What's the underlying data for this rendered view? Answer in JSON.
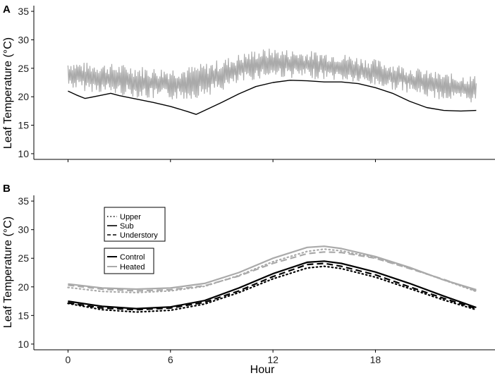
{
  "chart_data": [
    {
      "panel": "A",
      "type": "line",
      "xlabel": "",
      "ylabel": "Leaf Temperature (°C)",
      "xlim": [
        -2,
        25
      ],
      "ylim": [
        9,
        36
      ],
      "yticks": [
        10,
        15,
        20,
        25,
        30,
        35
      ],
      "xticks": [
        0,
        6,
        12,
        18
      ],
      "xtick_labels_shown": false,
      "grid": false,
      "series": [
        {
          "key": "heated",
          "color": "#aaaaaa",
          "noisy": true,
          "baseline": [
            [
              0,
              24.0
            ],
            [
              1,
              23.5
            ],
            [
              2,
              23.3
            ],
            [
              3,
              23.0
            ],
            [
              4,
              22.7
            ],
            [
              5,
              22.3
            ],
            [
              6,
              22.3
            ],
            [
              7,
              22.4
            ],
            [
              8,
              23.0
            ],
            [
              9,
              23.8
            ],
            [
              10,
              24.8
            ],
            [
              11,
              25.7
            ],
            [
              12,
              26.0
            ],
            [
              13,
              25.8
            ],
            [
              14,
              25.6
            ],
            [
              15,
              25.5
            ],
            [
              16,
              25.2
            ],
            [
              17,
              24.7
            ],
            [
              18,
              24.2
            ],
            [
              19,
              23.6
            ],
            [
              20,
              23.0
            ],
            [
              21,
              22.3
            ],
            [
              22,
              21.8
            ],
            [
              23.9,
              21.3
            ]
          ],
          "amplitude": [
            [
              0,
              2.4
            ],
            [
              4,
              2.8
            ],
            [
              8,
              2.9
            ],
            [
              12,
              2.5
            ],
            [
              16,
              2.4
            ],
            [
              20,
              2.3
            ],
            [
              23.9,
              2.4
            ]
          ]
        },
        {
          "key": "control",
          "color": "#000000",
          "noisy": false,
          "points": [
            [
              0,
              21.0
            ],
            [
              0.5,
              20.3
            ],
            [
              1,
              19.7
            ],
            [
              2,
              20.3
            ],
            [
              2.5,
              20.6
            ],
            [
              3,
              20.2
            ],
            [
              4,
              19.6
            ],
            [
              5,
              19.0
            ],
            [
              6,
              18.3
            ],
            [
              7,
              17.4
            ],
            [
              7.5,
              16.9
            ],
            [
              8,
              17.6
            ],
            [
              9,
              19.0
            ],
            [
              10,
              20.5
            ],
            [
              11,
              21.8
            ],
            [
              12,
              22.5
            ],
            [
              13,
              22.9
            ],
            [
              14,
              22.8
            ],
            [
              15,
              22.6
            ],
            [
              16,
              22.6
            ],
            [
              17,
              22.3
            ],
            [
              18,
              21.6
            ],
            [
              19,
              20.6
            ],
            [
              20,
              19.2
            ],
            [
              21,
              18.1
            ],
            [
              22,
              17.6
            ],
            [
              23,
              17.5
            ],
            [
              23.9,
              17.6
            ]
          ]
        }
      ]
    },
    {
      "panel": "B",
      "type": "line",
      "xlabel": "Hour",
      "ylabel": "Leaf Temperature (°C)",
      "xlim": [
        -2,
        25
      ],
      "ylim": [
        9,
        36
      ],
      "yticks": [
        10,
        15,
        20,
        25,
        30,
        35
      ],
      "xticks": [
        0,
        6,
        12,
        18
      ],
      "xtick_labels_shown": true,
      "grid": false,
      "legends": [
        {
          "position": "upper-left",
          "entries": [
            {
              "label": "Upper",
              "dash": "dotted"
            },
            {
              "label": "Sub",
              "dash": "solid"
            },
            {
              "label": "Understory",
              "dash": "dashed"
            }
          ]
        },
        {
          "position": "upper-left",
          "entries": [
            {
              "label": "Control",
              "color": "#000000"
            },
            {
              "label": "Heated",
              "color": "#aaaaaa"
            }
          ]
        }
      ],
      "series": [
        {
          "treatment": "Heated",
          "canopy": "Sub",
          "color": "#aaaaaa",
          "dash": "solid",
          "points": [
            [
              0,
              20.5
            ],
            [
              2,
              19.8
            ],
            [
              4,
              19.6
            ],
            [
              6,
              19.8
            ],
            [
              8,
              20.6
            ],
            [
              10,
              22.5
            ],
            [
              12,
              25.0
            ],
            [
              14,
              26.9
            ],
            [
              15,
              27.1
            ],
            [
              16,
              26.7
            ],
            [
              18,
              25.3
            ],
            [
              20,
              23.4
            ],
            [
              22,
              21.2
            ],
            [
              23.9,
              19.5
            ]
          ]
        },
        {
          "treatment": "Heated",
          "canopy": "Understory",
          "color": "#aaaaaa",
          "dash": "dashed",
          "points": [
            [
              0,
              20.3
            ],
            [
              2,
              19.6
            ],
            [
              4,
              19.3
            ],
            [
              6,
              19.5
            ],
            [
              8,
              20.2
            ],
            [
              10,
              21.9
            ],
            [
              12,
              24.1
            ],
            [
              14,
              25.8
            ],
            [
              15,
              26.1
            ],
            [
              16,
              26.0
            ],
            [
              18,
              25.0
            ],
            [
              20,
              23.2
            ],
            [
              22,
              21.3
            ],
            [
              23.9,
              19.3
            ]
          ]
        },
        {
          "treatment": "Heated",
          "canopy": "Upper",
          "color": "#aaaaaa",
          "dash": "dotted",
          "points": [
            [
              0,
              19.9
            ],
            [
              2,
              19.2
            ],
            [
              4,
              19.0
            ],
            [
              6,
              19.3
            ],
            [
              8,
              20.1
            ],
            [
              10,
              22.0
            ],
            [
              12,
              24.4
            ],
            [
              14,
              26.2
            ],
            [
              15,
              26.6
            ],
            [
              16,
              26.3
            ],
            [
              18,
              25.1
            ],
            [
              20,
              23.3
            ],
            [
              22,
              21.2
            ],
            [
              23.9,
              19.2
            ]
          ]
        },
        {
          "treatment": "Control",
          "canopy": "Sub",
          "color": "#000000",
          "dash": "solid",
          "points": [
            [
              0,
              17.5
            ],
            [
              2,
              16.6
            ],
            [
              4,
              16.2
            ],
            [
              6,
              16.5
            ],
            [
              8,
              17.6
            ],
            [
              10,
              19.8
            ],
            [
              12,
              22.3
            ],
            [
              14,
              24.3
            ],
            [
              15,
              24.5
            ],
            [
              16,
              24.1
            ],
            [
              18,
              22.6
            ],
            [
              20,
              20.6
            ],
            [
              22,
              18.4
            ],
            [
              23.9,
              16.4
            ]
          ]
        },
        {
          "treatment": "Control",
          "canopy": "Understory",
          "color": "#000000",
          "dash": "dashed",
          "points": [
            [
              0,
              17.2
            ],
            [
              2,
              16.3
            ],
            [
              4,
              16.0
            ],
            [
              6,
              16.3
            ],
            [
              8,
              17.3
            ],
            [
              10,
              19.3
            ],
            [
              12,
              21.8
            ],
            [
              14,
              23.9
            ],
            [
              15,
              24.1
            ],
            [
              16,
              23.6
            ],
            [
              18,
              22.1
            ],
            [
              20,
              20.0
            ],
            [
              22,
              18.0
            ],
            [
              23.9,
              16.2
            ]
          ]
        },
        {
          "treatment": "Control",
          "canopy": "Upper",
          "color": "#000000",
          "dash": "dotted",
          "points": [
            [
              0,
              17.1
            ],
            [
              2,
              16.0
            ],
            [
              4,
              15.6
            ],
            [
              6,
              15.9
            ],
            [
              8,
              17.0
            ],
            [
              10,
              19.0
            ],
            [
              12,
              21.4
            ],
            [
              14,
              23.3
            ],
            [
              15,
              23.6
            ],
            [
              16,
              23.2
            ],
            [
              18,
              21.7
            ],
            [
              20,
              19.7
            ],
            [
              22,
              17.7
            ],
            [
              23.9,
              16.0
            ]
          ]
        }
      ]
    }
  ]
}
